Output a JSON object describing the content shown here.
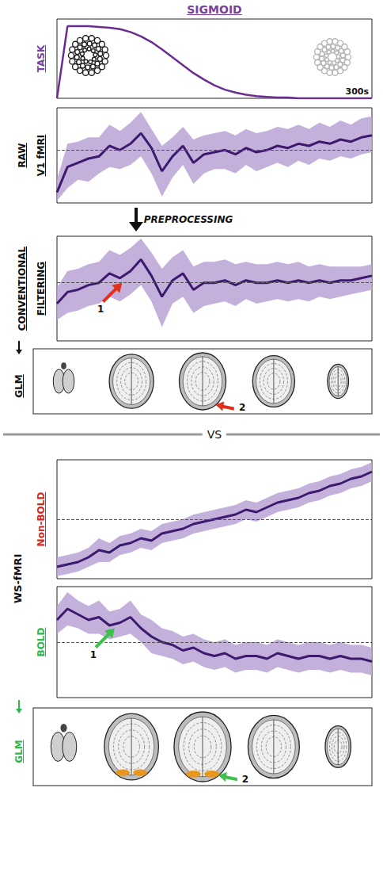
{
  "chart_data": [
    {
      "type": "line",
      "ylabel": [
        "TASK"
      ],
      "ylabel_color": "#7a3fa0",
      "note": "300s",
      "color": "#6a2c91",
      "xlim": [
        0,
        300
      ],
      "ylim": [
        0,
        1.1
      ],
      "grid": false,
      "tick_labels": false,
      "x": [
        0,
        10,
        20,
        30,
        40,
        50,
        60,
        70,
        80,
        90,
        100,
        110,
        120,
        130,
        140,
        150,
        160,
        170,
        180,
        190,
        200,
        210,
        220,
        230,
        240,
        250,
        260,
        270,
        280,
        290,
        300
      ],
      "values": [
        0,
        1,
        1,
        1,
        0.99,
        0.98,
        0.96,
        0.92,
        0.86,
        0.78,
        0.68,
        0.57,
        0.46,
        0.35,
        0.26,
        0.18,
        0.12,
        0.08,
        0.05,
        0.03,
        0.02,
        0.01,
        0.01,
        0,
        0,
        0,
        0,
        0,
        0,
        0,
        0
      ]
    },
    {
      "type": "line",
      "ylabel": [
        "RAW",
        "V1 fMRI"
      ],
      "ylabel_color": "#111111",
      "color": "#3d1a6e",
      "band_color": "#b9a3d6",
      "reference_line": 0,
      "xlim": [
        0,
        300
      ],
      "ylim": [
        -2.5,
        2
      ],
      "grid": false,
      "tick_labels": false,
      "x": [
        0,
        10,
        20,
        30,
        40,
        50,
        60,
        70,
        80,
        90,
        100,
        110,
        120,
        130,
        140,
        150,
        160,
        170,
        180,
        190,
        200,
        210,
        220,
        230,
        240,
        250,
        260,
        270,
        280,
        290,
        300
      ],
      "values": [
        -2.0,
        -0.8,
        -0.6,
        -0.4,
        -0.3,
        0.2,
        0.0,
        0.3,
        0.8,
        0.1,
        -1.0,
        -0.3,
        0.2,
        -0.6,
        -0.2,
        -0.1,
        0.0,
        -0.2,
        0.1,
        -0.1,
        0.0,
        0.2,
        0.1,
        0.3,
        0.2,
        0.4,
        0.3,
        0.5,
        0.4,
        0.6,
        0.7
      ],
      "lower": [
        -2.4,
        -1.8,
        -1.4,
        -1.5,
        -1.1,
        -0.8,
        -0.9,
        -0.7,
        -0.3,
        -1.1,
        -2.2,
        -1.3,
        -0.7,
        -1.6,
        -1.1,
        -0.9,
        -0.9,
        -1.1,
        -0.7,
        -1.0,
        -0.8,
        -0.6,
        -0.8,
        -0.5,
        -0.7,
        -0.4,
        -0.5,
        -0.3,
        -0.4,
        -0.2,
        -0.1
      ],
      "upper": [
        -1.4,
        0.3,
        0.4,
        0.6,
        0.6,
        1.2,
        0.9,
        1.3,
        1.8,
        1.0,
        0.2,
        0.6,
        1.1,
        0.5,
        0.7,
        0.8,
        0.9,
        0.7,
        1.0,
        0.8,
        0.9,
        1.1,
        1.0,
        1.2,
        1.0,
        1.3,
        1.1,
        1.4,
        1.2,
        1.5,
        1.6
      ]
    },
    {
      "type": "line",
      "ylabel": [
        "CONVENTIONAL",
        "FILTERING"
      ],
      "ylabel_color": "#111111",
      "color": "#3d1a6e",
      "band_color": "#b9a3d6",
      "reference_line": 0,
      "xlim": [
        0,
        300
      ],
      "ylim": [
        -2.5,
        2
      ],
      "grid": false,
      "tick_labels": false,
      "arrows": [
        {
          "label": "1",
          "x": 62,
          "y": 0.0,
          "color": "#e0301e"
        }
      ],
      "x": [
        0,
        10,
        20,
        30,
        40,
        50,
        60,
        70,
        80,
        90,
        100,
        110,
        120,
        130,
        140,
        150,
        160,
        170,
        180,
        190,
        200,
        210,
        220,
        230,
        240,
        250,
        260,
        270,
        280,
        290,
        300
      ],
      "values": [
        -0.9,
        -0.4,
        -0.3,
        -0.1,
        0.0,
        0.4,
        0.2,
        0.5,
        1.0,
        0.3,
        -0.6,
        0.1,
        0.4,
        -0.3,
        0.0,
        0.0,
        0.1,
        -0.1,
        0.1,
        0.0,
        0.0,
        0.1,
        0.0,
        0.1,
        0.0,
        0.1,
        0.0,
        0.1,
        0.1,
        0.2,
        0.3
      ],
      "lower": [
        -1.6,
        -1.3,
        -1.2,
        -1.0,
        -0.9,
        -0.6,
        -0.8,
        -0.5,
        -0.1,
        -0.8,
        -1.9,
        -0.9,
        -0.6,
        -1.3,
        -1.0,
        -0.9,
        -0.8,
        -1.0,
        -0.7,
        -0.9,
        -0.8,
        -0.7,
        -0.8,
        -0.7,
        -0.8,
        -0.6,
        -0.7,
        -0.6,
        -0.5,
        -0.4,
        -0.3
      ],
      "upper": [
        -0.2,
        0.5,
        0.6,
        0.8,
        0.9,
        1.4,
        1.2,
        1.5,
        1.9,
        1.3,
        0.6,
        1.1,
        1.4,
        0.7,
        0.9,
        0.9,
        1.0,
        0.8,
        0.9,
        0.8,
        0.8,
        0.9,
        0.8,
        0.9,
        0.7,
        0.8,
        0.7,
        0.7,
        0.7,
        0.7,
        0.8
      ]
    },
    {
      "type": "line",
      "ylabel": [
        "Non-BOLD"
      ],
      "ylabel_color": "#d62a1e",
      "color": "#3d1a6e",
      "band_color": "#b9a3d6",
      "reference_line": 0,
      "xlim": [
        0,
        300
      ],
      "ylim": [
        -2.5,
        2.5
      ],
      "grid": false,
      "tick_labels": false,
      "x": [
        0,
        10,
        20,
        30,
        40,
        50,
        60,
        70,
        80,
        90,
        100,
        110,
        120,
        130,
        140,
        150,
        160,
        170,
        180,
        190,
        200,
        210,
        220,
        230,
        240,
        250,
        260,
        270,
        280,
        290,
        300
      ],
      "values": [
        -2.0,
        -1.9,
        -1.8,
        -1.6,
        -1.3,
        -1.4,
        -1.1,
        -1.0,
        -0.8,
        -0.9,
        -0.6,
        -0.5,
        -0.4,
        -0.2,
        -0.1,
        0.0,
        0.1,
        0.2,
        0.4,
        0.3,
        0.5,
        0.7,
        0.8,
        0.9,
        1.1,
        1.2,
        1.4,
        1.5,
        1.7,
        1.8,
        2.0
      ],
      "lower": [
        -2.4,
        -2.3,
        -2.2,
        -2.0,
        -1.8,
        -1.8,
        -1.5,
        -1.4,
        -1.2,
        -1.3,
        -1.0,
        -0.9,
        -0.8,
        -0.6,
        -0.5,
        -0.4,
        -0.3,
        -0.2,
        0.0,
        -0.1,
        0.1,
        0.3,
        0.4,
        0.5,
        0.7,
        0.8,
        1.0,
        1.1,
        1.3,
        1.4,
        1.6
      ],
      "upper": [
        -1.6,
        -1.5,
        -1.4,
        -1.2,
        -0.8,
        -1.0,
        -0.7,
        -0.6,
        -0.4,
        -0.5,
        -0.2,
        -0.1,
        0.0,
        0.2,
        0.3,
        0.4,
        0.5,
        0.6,
        0.8,
        0.7,
        0.9,
        1.1,
        1.2,
        1.3,
        1.5,
        1.6,
        1.8,
        1.9,
        2.1,
        2.2,
        2.4
      ]
    },
    {
      "type": "line",
      "ylabel": [
        "BOLD"
      ],
      "ylabel_color": "#2db84d",
      "color": "#3d1a6e",
      "band_color": "#b9a3d6",
      "reference_line": 0,
      "xlim": [
        0,
        300
      ],
      "ylim": [
        -2,
        2
      ],
      "grid": false,
      "tick_labels": false,
      "arrows": [
        {
          "label": "1",
          "x": 55,
          "y": 0.5,
          "color": "#3cc24a"
        }
      ],
      "x": [
        0,
        10,
        20,
        30,
        40,
        50,
        60,
        70,
        80,
        90,
        100,
        110,
        120,
        130,
        140,
        150,
        160,
        170,
        180,
        190,
        200,
        210,
        220,
        230,
        240,
        250,
        260,
        270,
        280,
        290,
        300
      ],
      "values": [
        0.8,
        1.2,
        1.0,
        0.8,
        0.9,
        0.6,
        0.7,
        0.9,
        0.5,
        0.2,
        0.0,
        -0.1,
        -0.3,
        -0.2,
        -0.4,
        -0.5,
        -0.4,
        -0.6,
        -0.5,
        -0.5,
        -0.6,
        -0.4,
        -0.5,
        -0.6,
        -0.5,
        -0.5,
        -0.6,
        -0.5,
        -0.6,
        -0.6,
        -0.7
      ],
      "lower": [
        0.3,
        0.6,
        0.5,
        0.3,
        0.3,
        0.1,
        0.2,
        0.3,
        0.0,
        -0.4,
        -0.5,
        -0.6,
        -0.8,
        -0.7,
        -0.9,
        -1.0,
        -0.9,
        -1.1,
        -1.0,
        -1.0,
        -1.1,
        -0.9,
        -1.0,
        -1.1,
        -1.0,
        -1.0,
        -1.1,
        -1.0,
        -1.1,
        -1.1,
        -1.2
      ],
      "upper": [
        1.3,
        1.8,
        1.5,
        1.3,
        1.5,
        1.1,
        1.2,
        1.5,
        1.0,
        0.8,
        0.5,
        0.4,
        0.2,
        0.3,
        0.1,
        0.0,
        0.1,
        -0.1,
        0.0,
        0.0,
        -0.1,
        0.1,
        0.0,
        -0.1,
        0.0,
        0.0,
        -0.1,
        0.0,
        -0.1,
        -0.1,
        -0.2
      ]
    }
  ],
  "figure": {
    "title": "SIGMOID",
    "title_color": "#7a3fa0",
    "preprocessing": "PREPROCESSING",
    "vs": "VS",
    "ws_label": "WS-fMRI",
    "glm_rows": [
      {
        "label": "GLM",
        "label_color": "#111111",
        "arrow_label": "2",
        "arrow_color": "#e0301e",
        "activation": false
      },
      {
        "label": "GLM",
        "label_color": "#2db84d",
        "arrow_label": "2",
        "arrow_color": "#3cc24a",
        "activation": true,
        "activation_color": "#e8961e"
      }
    ]
  }
}
